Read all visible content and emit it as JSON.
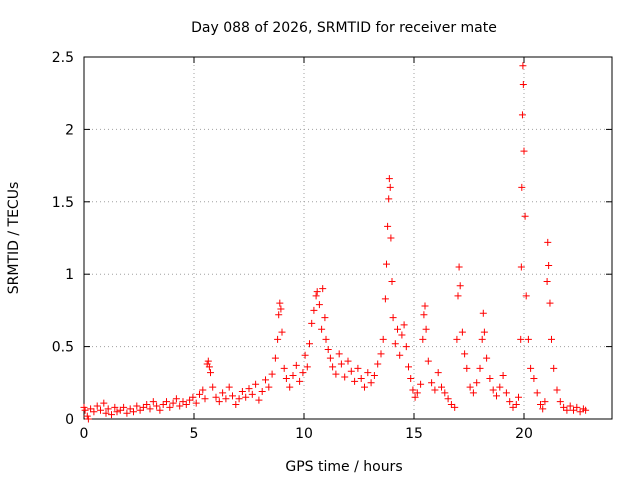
{
  "chart_data": {
    "type": "scatter",
    "title": "Day 088 of 2026, SRMTID for receiver mate",
    "xlabel": "GPS time / hours",
    "ylabel": "SRMTID / TECUs",
    "xlim": [
      0,
      24
    ],
    "ylim": [
      0,
      2.5
    ],
    "x_ticks": [
      0,
      5,
      10,
      15,
      20
    ],
    "x_tick_labels": [
      "0",
      "5",
      "10",
      "15",
      "20"
    ],
    "y_ticks": [
      0,
      0.5,
      1,
      1.5,
      2,
      2.5
    ],
    "y_tick_labels": [
      "0",
      "0.5",
      "1",
      "1.5",
      "2",
      "2.5"
    ],
    "grid": true,
    "marker": "+",
    "series": [
      {
        "name": "SRMTID",
        "color": "#ff0000",
        "points": [
          [
            0.0,
            0.08
          ],
          [
            0.05,
            0.06
          ],
          [
            0.15,
            0.02
          ],
          [
            0.2,
            0.0
          ],
          [
            0.3,
            0.07
          ],
          [
            0.45,
            0.05
          ],
          [
            0.6,
            0.09
          ],
          [
            0.75,
            0.06
          ],
          [
            0.9,
            0.11
          ],
          [
            1.0,
            0.04
          ],
          [
            1.1,
            0.07
          ],
          [
            1.25,
            0.03
          ],
          [
            1.4,
            0.08
          ],
          [
            1.5,
            0.05
          ],
          [
            1.65,
            0.06
          ],
          [
            1.8,
            0.08
          ],
          [
            1.95,
            0.04
          ],
          [
            2.1,
            0.07
          ],
          [
            2.25,
            0.05
          ],
          [
            2.4,
            0.09
          ],
          [
            2.55,
            0.06
          ],
          [
            2.7,
            0.08
          ],
          [
            2.85,
            0.1
          ],
          [
            3.0,
            0.07
          ],
          [
            3.15,
            0.12
          ],
          [
            3.3,
            0.09
          ],
          [
            3.45,
            0.06
          ],
          [
            3.6,
            0.1
          ],
          [
            3.75,
            0.12
          ],
          [
            3.9,
            0.08
          ],
          [
            4.05,
            0.11
          ],
          [
            4.2,
            0.14
          ],
          [
            4.35,
            0.09
          ],
          [
            4.5,
            0.12
          ],
          [
            4.65,
            0.1
          ],
          [
            4.8,
            0.13
          ],
          [
            4.95,
            0.15
          ],
          [
            5.1,
            0.11
          ],
          [
            5.25,
            0.17
          ],
          [
            5.4,
            0.2
          ],
          [
            5.5,
            0.14
          ],
          [
            5.6,
            0.38
          ],
          [
            5.65,
            0.4
          ],
          [
            5.7,
            0.36
          ],
          [
            5.75,
            0.32
          ],
          [
            5.85,
            0.22
          ],
          [
            6.0,
            0.15
          ],
          [
            6.15,
            0.12
          ],
          [
            6.3,
            0.18
          ],
          [
            6.45,
            0.14
          ],
          [
            6.6,
            0.22
          ],
          [
            6.75,
            0.16
          ],
          [
            6.9,
            0.1
          ],
          [
            7.05,
            0.14
          ],
          [
            7.2,
            0.19
          ],
          [
            7.35,
            0.15
          ],
          [
            7.5,
            0.21
          ],
          [
            7.65,
            0.17
          ],
          [
            7.8,
            0.24
          ],
          [
            7.95,
            0.13
          ],
          [
            8.1,
            0.19
          ],
          [
            8.25,
            0.27
          ],
          [
            8.4,
            0.22
          ],
          [
            8.55,
            0.31
          ],
          [
            8.7,
            0.42
          ],
          [
            8.8,
            0.55
          ],
          [
            8.85,
            0.72
          ],
          [
            8.9,
            0.8
          ],
          [
            8.95,
            0.76
          ],
          [
            9.0,
            0.6
          ],
          [
            9.1,
            0.35
          ],
          [
            9.2,
            0.28
          ],
          [
            9.35,
            0.22
          ],
          [
            9.5,
            0.3
          ],
          [
            9.65,
            0.37
          ],
          [
            9.8,
            0.26
          ],
          [
            9.95,
            0.32
          ],
          [
            10.05,
            0.44
          ],
          [
            10.15,
            0.36
          ],
          [
            10.25,
            0.52
          ],
          [
            10.35,
            0.66
          ],
          [
            10.45,
            0.75
          ],
          [
            10.55,
            0.85
          ],
          [
            10.6,
            0.88
          ],
          [
            10.7,
            0.79
          ],
          [
            10.8,
            0.62
          ],
          [
            10.85,
            0.9
          ],
          [
            10.95,
            0.7
          ],
          [
            11.0,
            0.55
          ],
          [
            11.1,
            0.48
          ],
          [
            11.2,
            0.42
          ],
          [
            11.3,
            0.36
          ],
          [
            11.45,
            0.31
          ],
          [
            11.6,
            0.45
          ],
          [
            11.7,
            0.38
          ],
          [
            11.85,
            0.29
          ],
          [
            12.0,
            0.4
          ],
          [
            12.15,
            0.33
          ],
          [
            12.3,
            0.26
          ],
          [
            12.45,
            0.35
          ],
          [
            12.6,
            0.28
          ],
          [
            12.75,
            0.22
          ],
          [
            12.9,
            0.32
          ],
          [
            13.05,
            0.25
          ],
          [
            13.2,
            0.3
          ],
          [
            13.35,
            0.38
          ],
          [
            13.5,
            0.45
          ],
          [
            13.6,
            0.55
          ],
          [
            13.7,
            0.83
          ],
          [
            13.75,
            1.07
          ],
          [
            13.8,
            1.33
          ],
          [
            13.85,
            1.52
          ],
          [
            13.88,
            1.66
          ],
          [
            13.92,
            1.6
          ],
          [
            13.95,
            1.25
          ],
          [
            14.0,
            0.95
          ],
          [
            14.05,
            0.7
          ],
          [
            14.15,
            0.52
          ],
          [
            14.25,
            0.62
          ],
          [
            14.35,
            0.44
          ],
          [
            14.45,
            0.58
          ],
          [
            14.55,
            0.65
          ],
          [
            14.65,
            0.5
          ],
          [
            14.75,
            0.36
          ],
          [
            14.85,
            0.28
          ],
          [
            14.95,
            0.2
          ],
          [
            15.05,
            0.15
          ],
          [
            15.15,
            0.18
          ],
          [
            15.3,
            0.24
          ],
          [
            15.4,
            0.55
          ],
          [
            15.45,
            0.72
          ],
          [
            15.5,
            0.78
          ],
          [
            15.55,
            0.62
          ],
          [
            15.65,
            0.4
          ],
          [
            15.8,
            0.25
          ],
          [
            15.95,
            0.2
          ],
          [
            16.1,
            0.32
          ],
          [
            16.25,
            0.22
          ],
          [
            16.4,
            0.18
          ],
          [
            16.55,
            0.14
          ],
          [
            16.7,
            0.1
          ],
          [
            16.85,
            0.08
          ],
          [
            16.95,
            0.55
          ],
          [
            17.0,
            0.85
          ],
          [
            17.05,
            1.05
          ],
          [
            17.1,
            0.92
          ],
          [
            17.2,
            0.6
          ],
          [
            17.3,
            0.45
          ],
          [
            17.4,
            0.35
          ],
          [
            17.55,
            0.22
          ],
          [
            17.7,
            0.18
          ],
          [
            17.85,
            0.25
          ],
          [
            18.0,
            0.35
          ],
          [
            18.1,
            0.55
          ],
          [
            18.15,
            0.73
          ],
          [
            18.2,
            0.6
          ],
          [
            18.3,
            0.42
          ],
          [
            18.45,
            0.28
          ],
          [
            18.6,
            0.2
          ],
          [
            18.75,
            0.16
          ],
          [
            18.9,
            0.22
          ],
          [
            19.05,
            0.3
          ],
          [
            19.2,
            0.18
          ],
          [
            19.35,
            0.12
          ],
          [
            19.5,
            0.08
          ],
          [
            19.65,
            0.1
          ],
          [
            19.75,
            0.15
          ],
          [
            19.85,
            0.55
          ],
          [
            19.88,
            1.05
          ],
          [
            19.9,
            1.6
          ],
          [
            19.93,
            2.1
          ],
          [
            19.95,
            2.44
          ],
          [
            19.97,
            2.31
          ],
          [
            20.0,
            1.85
          ],
          [
            20.05,
            1.4
          ],
          [
            20.1,
            0.85
          ],
          [
            20.2,
            0.55
          ],
          [
            20.3,
            0.35
          ],
          [
            20.45,
            0.28
          ],
          [
            20.6,
            0.18
          ],
          [
            20.75,
            0.1
          ],
          [
            20.85,
            0.07
          ],
          [
            20.95,
            0.12
          ],
          [
            21.05,
            0.95
          ],
          [
            21.08,
            1.22
          ],
          [
            21.12,
            1.06
          ],
          [
            21.18,
            0.8
          ],
          [
            21.25,
            0.55
          ],
          [
            21.35,
            0.35
          ],
          [
            21.5,
            0.2
          ],
          [
            21.65,
            0.12
          ],
          [
            21.8,
            0.08
          ],
          [
            21.95,
            0.06
          ],
          [
            22.1,
            0.09
          ],
          [
            22.25,
            0.06
          ],
          [
            22.4,
            0.08
          ],
          [
            22.55,
            0.05
          ],
          [
            22.7,
            0.07
          ],
          [
            22.8,
            0.06
          ]
        ]
      }
    ]
  }
}
